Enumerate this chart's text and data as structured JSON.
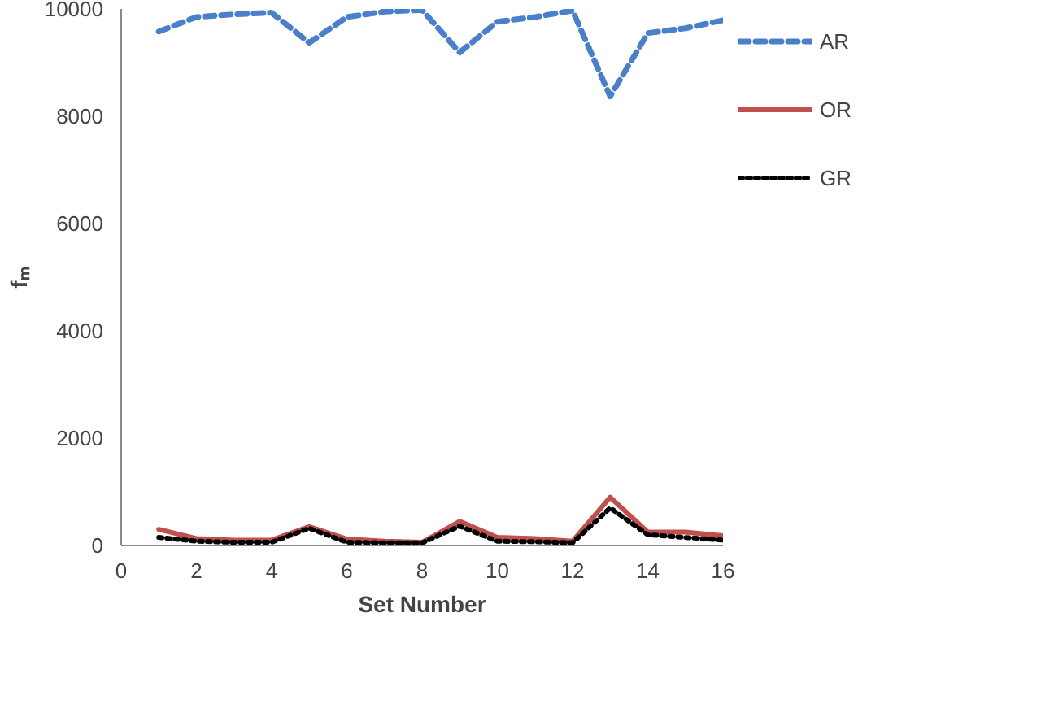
{
  "chart_data": {
    "type": "line",
    "xlabel": "Set Number",
    "ylabel": "fₘ",
    "x": [
      1,
      2,
      3,
      4,
      5,
      6,
      7,
      8,
      9,
      10,
      11,
      12,
      13,
      14,
      15,
      16
    ],
    "xlim": [
      0,
      16
    ],
    "xticks": [
      0,
      2,
      4,
      6,
      8,
      10,
      12,
      14,
      16
    ],
    "ylim": [
      0,
      10000
    ],
    "yticks": [
      0,
      2000,
      4000,
      6000,
      8000,
      10000
    ],
    "grid": false,
    "legend": "right",
    "marker": "none",
    "series": [
      {
        "name": "AR",
        "color": "#4a7fc9",
        "line_style": "dashed",
        "values": [
          9580,
          9850,
          9900,
          9930,
          9370,
          9850,
          9950,
          9980,
          9190,
          9760,
          9850,
          9970,
          8370,
          9550,
          9640,
          9790
        ]
      },
      {
        "name": "OR",
        "color": "#c0504d",
        "line_style": "solid",
        "values": [
          300,
          130,
          100,
          100,
          350,
          120,
          80,
          60,
          450,
          150,
          130,
          80,
          900,
          250,
          250,
          180
        ]
      },
      {
        "name": "GR",
        "color": "#000000",
        "line_style": "dotted",
        "values": [
          150,
          80,
          60,
          60,
          320,
          60,
          50,
          50,
          360,
          80,
          70,
          50,
          700,
          200,
          150,
          100
        ]
      }
    ]
  }
}
